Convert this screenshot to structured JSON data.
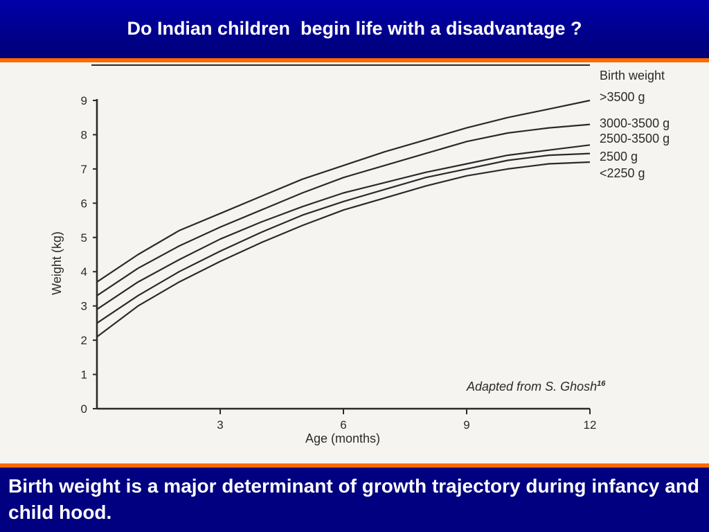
{
  "slide": {
    "title": "Do Indian children  begin life with a disadvantage ?",
    "caption": "Birth weight is a major determinant of growth trajectory during infancy and child hood."
  },
  "colors": {
    "header_bg": "#000080",
    "accent_rule": "#ff6a00",
    "figure_bg": "#f6f4f1",
    "ink": "#2a2a2a"
  },
  "chart_data": {
    "type": "line",
    "title": "",
    "xlabel": "Age (months)",
    "ylabel": "Weight (kg)",
    "xlim": [
      0,
      12
    ],
    "ylim": [
      0,
      9
    ],
    "x_ticks": [
      3,
      6,
      9,
      12
    ],
    "y_ticks": [
      0,
      1,
      2,
      3,
      4,
      5,
      6,
      7,
      8,
      9
    ],
    "grid": false,
    "legend_title": "Birth weight",
    "legend_position": "right",
    "source_note": "Adapted from S. Ghosh",
    "source_note_ref": "16",
    "x": [
      0,
      1,
      2,
      3,
      4,
      5,
      6,
      7,
      8,
      9,
      10,
      11,
      12
    ],
    "series": [
      {
        "name": ">3500 g",
        "values": [
          3.7,
          4.5,
          5.2,
          5.7,
          6.2,
          6.7,
          7.1,
          7.5,
          7.85,
          8.2,
          8.5,
          8.75,
          9.0
        ]
      },
      {
        "name": "3000-3500 g",
        "values": [
          3.3,
          4.1,
          4.75,
          5.3,
          5.8,
          6.3,
          6.75,
          7.1,
          7.45,
          7.8,
          8.05,
          8.2,
          8.3
        ]
      },
      {
        "name": "2500-3500 g",
        "values": [
          2.9,
          3.7,
          4.35,
          4.95,
          5.45,
          5.9,
          6.3,
          6.6,
          6.9,
          7.15,
          7.4,
          7.55,
          7.7
        ]
      },
      {
        "name": "2500 g",
        "values": [
          2.5,
          3.3,
          4.0,
          4.6,
          5.15,
          5.65,
          6.05,
          6.4,
          6.75,
          7.0,
          7.25,
          7.4,
          7.45
        ]
      },
      {
        "name": "<2250 g",
        "values": [
          2.1,
          3.0,
          3.7,
          4.3,
          4.85,
          5.35,
          5.8,
          6.15,
          6.5,
          6.8,
          7.0,
          7.15,
          7.2
        ]
      }
    ]
  }
}
